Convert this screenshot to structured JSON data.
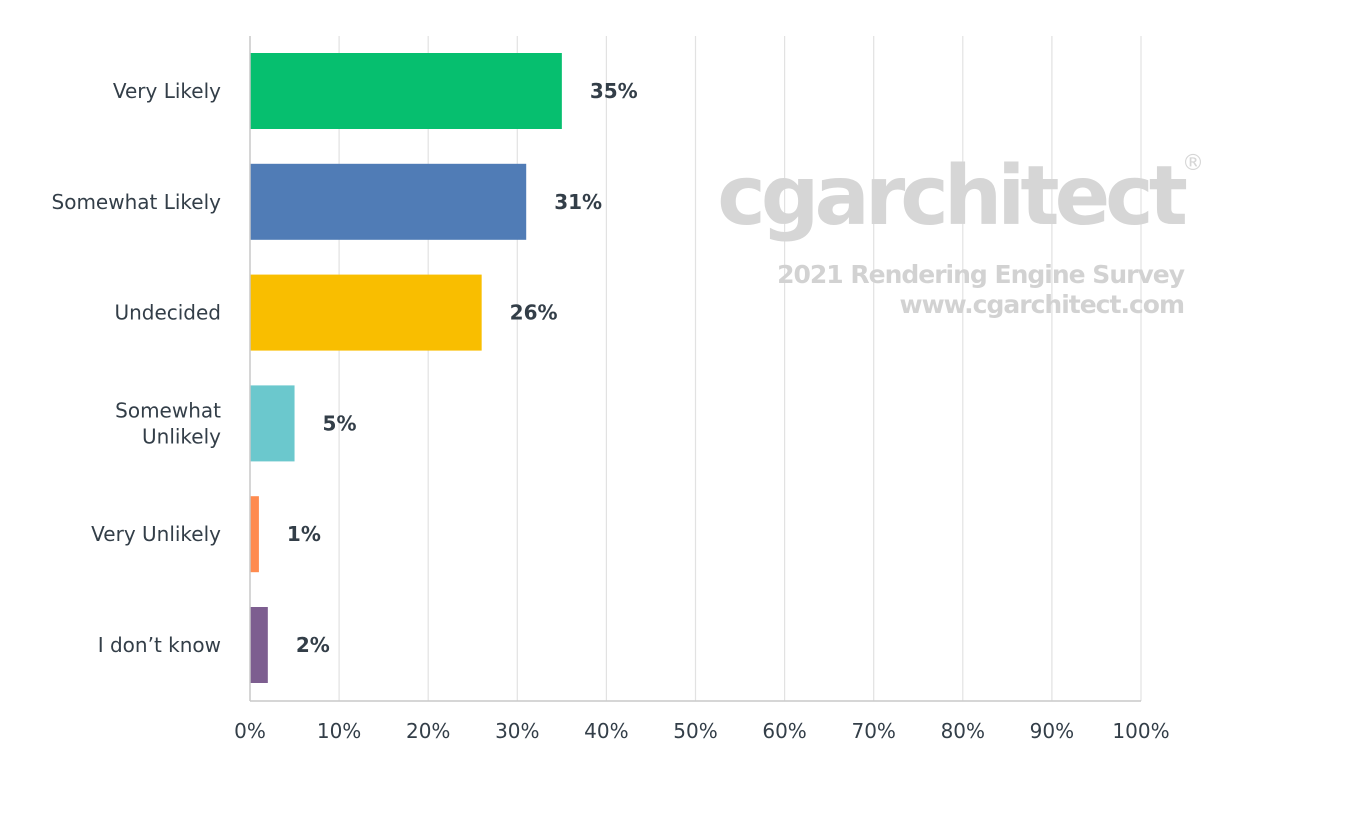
{
  "watermark": {
    "logo": "cgarchitect",
    "registered_mark": "®",
    "line1": "2021 Rendering Engine Survey",
    "line2": "www.cgarchitect.com"
  },
  "chart_data": {
    "type": "bar",
    "orientation": "horizontal",
    "categories": [
      "Very Likely",
      "Somewhat Likely",
      "Undecided",
      "Somewhat Unlikely",
      "Very Unlikely",
      "I don’t know"
    ],
    "values": [
      35,
      31,
      26,
      5,
      1,
      2
    ],
    "value_labels": [
      "35%",
      "31%",
      "26%",
      "5%",
      "1%",
      "2%"
    ],
    "colors": [
      "#06bf6f",
      "#507cb6",
      "#f9be00",
      "#6bc8cd",
      "#ff8b4f",
      "#7d5e90"
    ],
    "xlim": [
      0,
      100
    ],
    "x_ticks": [
      0,
      10,
      20,
      30,
      40,
      50,
      60,
      70,
      80,
      90,
      100
    ],
    "x_tick_labels": [
      "0%",
      "10%",
      "20%",
      "30%",
      "40%",
      "50%",
      "60%",
      "70%",
      "80%",
      "90%",
      "100%"
    ],
    "grid": true,
    "title": "",
    "xlabel": "",
    "ylabel": ""
  }
}
